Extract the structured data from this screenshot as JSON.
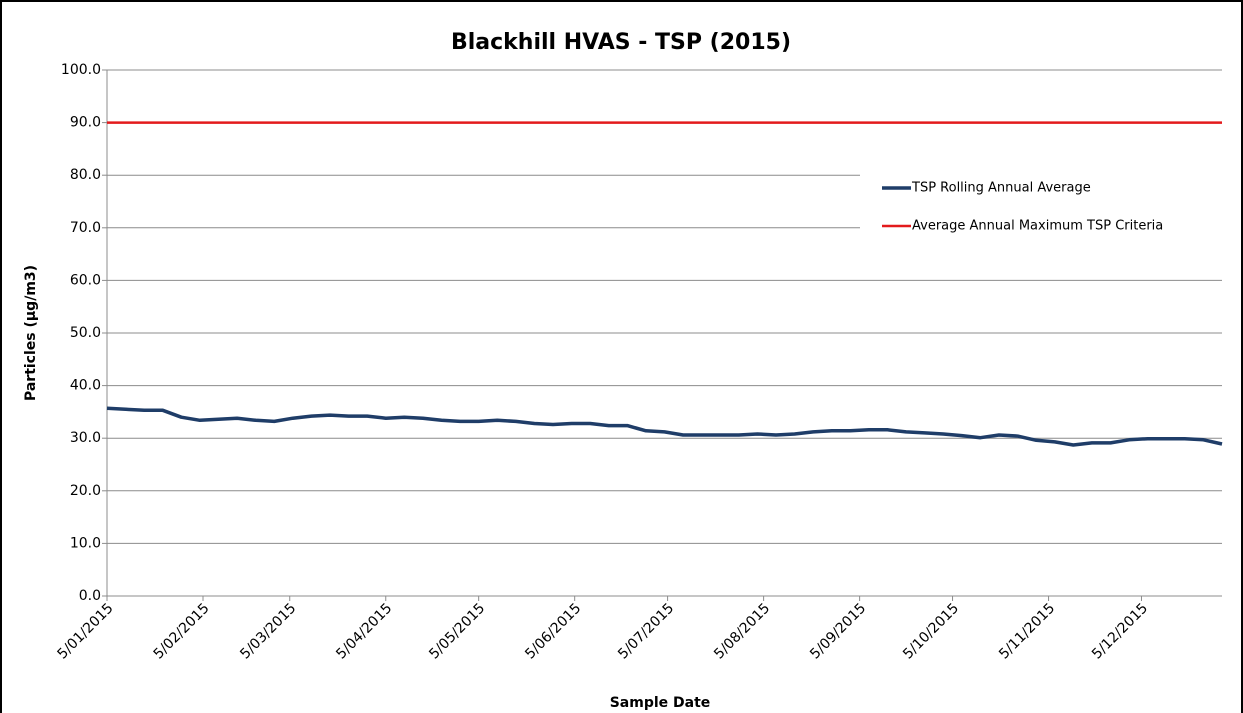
{
  "chart_data": {
    "type": "line",
    "title": "Blackhill HVAS - TSP (2015)",
    "x_label": "Sample Date",
    "y_label": "Particles (µg/m3)",
    "x": [
      "2015-01-05",
      "2015-01-11",
      "2015-01-17",
      "2015-01-23",
      "2015-01-29",
      "2015-02-04",
      "2015-02-10",
      "2015-02-16",
      "2015-02-22",
      "2015-02-28",
      "2015-03-06",
      "2015-03-12",
      "2015-03-18",
      "2015-03-24",
      "2015-03-30",
      "2015-04-05",
      "2015-04-11",
      "2015-04-17",
      "2015-04-23",
      "2015-04-29",
      "2015-05-05",
      "2015-05-11",
      "2015-05-17",
      "2015-05-23",
      "2015-05-29",
      "2015-06-04",
      "2015-06-10",
      "2015-06-16",
      "2015-06-22",
      "2015-06-28",
      "2015-07-04",
      "2015-07-10",
      "2015-07-16",
      "2015-07-22",
      "2015-07-28",
      "2015-08-03",
      "2015-08-09",
      "2015-08-15",
      "2015-08-21",
      "2015-08-27",
      "2015-09-02",
      "2015-09-08",
      "2015-09-14",
      "2015-09-20",
      "2015-09-26",
      "2015-10-02",
      "2015-10-08",
      "2015-10-14",
      "2015-10-20",
      "2015-10-26",
      "2015-11-01",
      "2015-11-07",
      "2015-11-13",
      "2015-11-19",
      "2015-11-25",
      "2015-12-01",
      "2015-12-07",
      "2015-12-13",
      "2015-12-19",
      "2015-12-25",
      "2015-12-31"
    ],
    "series": [
      {
        "name": "TSP Rolling Annual Average",
        "color": "#1f3d68",
        "values": [
          35.7,
          35.5,
          35.3,
          35.3,
          34.0,
          33.4,
          33.6,
          33.8,
          33.4,
          33.2,
          33.8,
          34.2,
          34.4,
          34.2,
          34.2,
          33.8,
          34.0,
          33.8,
          33.4,
          33.2,
          33.2,
          33.4,
          33.2,
          32.8,
          32.6,
          32.8,
          32.8,
          32.4,
          32.4,
          31.4,
          31.2,
          30.6,
          30.6,
          30.6,
          30.6,
          30.8,
          30.6,
          30.8,
          31.2,
          31.4,
          31.4,
          31.6,
          31.6,
          31.2,
          31.0,
          30.8,
          30.5,
          30.1,
          30.6,
          30.4,
          29.6,
          29.3,
          28.7,
          29.1,
          29.1,
          29.7,
          29.9,
          29.9,
          29.9,
          29.7,
          28.9
        ]
      },
      {
        "name": "Average Annual Maximum TSP Criteria",
        "color": "#e31a1c",
        "values": [
          90,
          90,
          90,
          90,
          90,
          90,
          90,
          90,
          90,
          90,
          90,
          90,
          90,
          90,
          90,
          90,
          90,
          90,
          90,
          90,
          90,
          90,
          90,
          90,
          90,
          90,
          90,
          90,
          90,
          90,
          90,
          90,
          90,
          90,
          90,
          90,
          90,
          90,
          90,
          90,
          90,
          90,
          90,
          90,
          90,
          90,
          90,
          90,
          90,
          90,
          90,
          90,
          90,
          90,
          90,
          90,
          90,
          90,
          90,
          90,
          90
        ]
      }
    ],
    "xlim": [
      "2015-01-05",
      "2015-12-31"
    ],
    "xticks": [
      {
        "value": "2015-01-05",
        "label": "5/01/2015"
      },
      {
        "value": "2015-02-05",
        "label": "5/02/2015"
      },
      {
        "value": "2015-03-05",
        "label": "5/03/2015"
      },
      {
        "value": "2015-04-05",
        "label": "5/04/2015"
      },
      {
        "value": "2015-05-05",
        "label": "5/05/2015"
      },
      {
        "value": "2015-06-05",
        "label": "5/06/2015"
      },
      {
        "value": "2015-07-05",
        "label": "5/07/2015"
      },
      {
        "value": "2015-08-05",
        "label": "5/08/2015"
      },
      {
        "value": "2015-09-05",
        "label": "5/09/2015"
      },
      {
        "value": "2015-10-05",
        "label": "5/10/2015"
      },
      {
        "value": "2015-11-05",
        "label": "5/11/2015"
      },
      {
        "value": "2015-12-05",
        "label": "5/12/2015"
      }
    ],
    "ylim": [
      0,
      100
    ],
    "yticks": [
      {
        "value": 0,
        "label": "0.0"
      },
      {
        "value": 10,
        "label": "10.0"
      },
      {
        "value": 20,
        "label": "20.0"
      },
      {
        "value": 30,
        "label": "30.0"
      },
      {
        "value": 40,
        "label": "40.0"
      },
      {
        "value": 50,
        "label": "50.0"
      },
      {
        "value": 60,
        "label": "60.0"
      },
      {
        "value": 70,
        "label": "70.0"
      },
      {
        "value": 80,
        "label": "80.0"
      },
      {
        "value": 90,
        "label": "90.0"
      },
      {
        "value": 100,
        "label": "100.0"
      }
    ],
    "grid": true,
    "legend": "right"
  }
}
